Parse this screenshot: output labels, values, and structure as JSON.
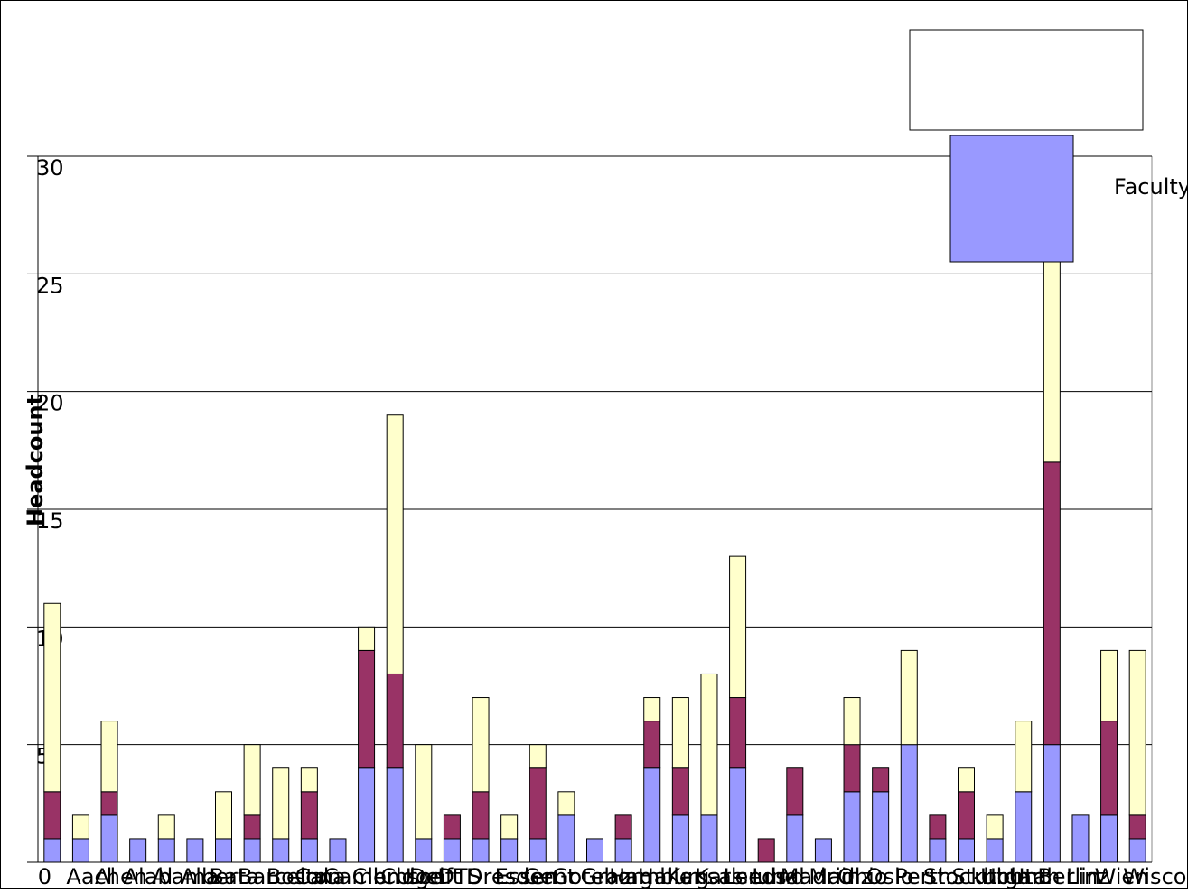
{
  "chart_data": {
    "type": "stacked_bar",
    "y_label": "Headcount",
    "categories": [
      "0",
      "Aachen",
      "Al",
      "Alabama",
      "Al",
      "Alberta",
      "Ba",
      "Barcelona",
      "Boston",
      "Cal",
      "Cambridge",
      "Clemson",
      "CU",
      "Delft",
      "DTS",
      "Dresden",
      "Essen",
      "Gent",
      "Goteborg",
      "Graz",
      "Hamburg",
      "Halle",
      "Kansas",
      "Karlsruhe",
      "Leeds",
      "Lund",
      "Madrid",
      "Mainz",
      "Ohio",
      "Oslo",
      "Perth",
      "Stockholm",
      "Stuttgart",
      "Ulm",
      "Utah",
      "Berlin",
      "Linz",
      "Wien",
      "Wisconsin"
    ],
    "series": [
      {
        "name": "Faculty",
        "color": "#9999ff",
        "values": [
          1,
          1,
          2,
          1,
          1,
          1,
          1,
          1,
          1,
          1,
          1,
          4,
          4,
          1,
          1,
          1,
          1,
          1,
          2,
          1,
          1,
          4,
          2,
          2,
          4,
          0,
          2,
          1,
          3,
          3,
          5,
          1,
          1,
          1,
          3,
          5,
          2,
          2,
          1
        ]
      },
      {
        "color": "#993366",
        "values": [
          2,
          0,
          1,
          0,
          0,
          0,
          0,
          1,
          0,
          2,
          0,
          5,
          4,
          0,
          1,
          2,
          0,
          3,
          0,
          0,
          1,
          2,
          2,
          0,
          3,
          1,
          2,
          0,
          2,
          1,
          0,
          1,
          2,
          0,
          0,
          12,
          0,
          4,
          1
        ]
      },
      {
        "color": "#ffffcc",
        "values": [
          8,
          1,
          3,
          0,
          1,
          0,
          2,
          3,
          3,
          1,
          0,
          1,
          11,
          4,
          0,
          4,
          1,
          1,
          1,
          0,
          0,
          1,
          3,
          6,
          6,
          0,
          0,
          0,
          2,
          0,
          4,
          0,
          1,
          1,
          3,
          11,
          0,
          3,
          7
        ]
      }
    ],
    "ylim": [
      0,
      30
    ],
    "yticks": [
      5,
      10,
      15,
      20,
      25,
      30
    ],
    "grid": true
  }
}
